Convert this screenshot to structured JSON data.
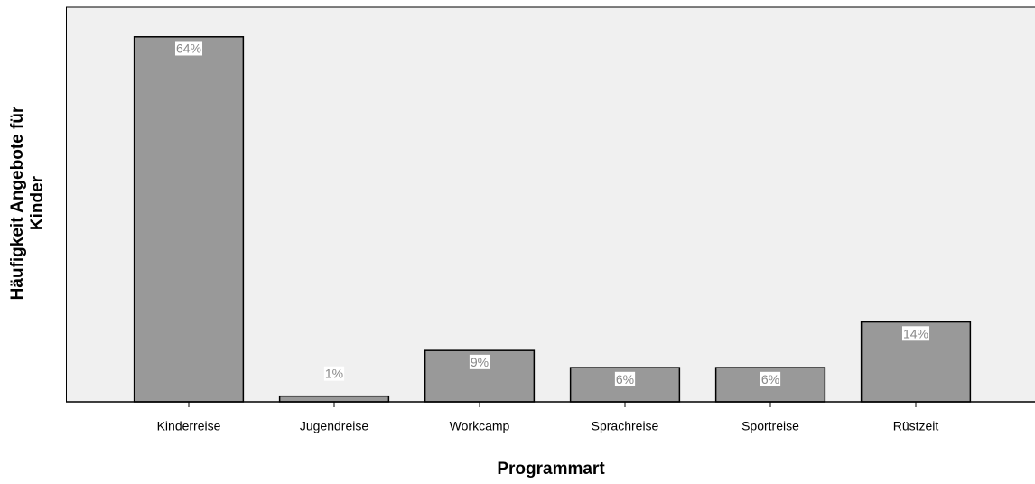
{
  "chart_data": {
    "type": "bar",
    "x_label": "Programmart",
    "y_label": [
      "Häufigkeit Angebote für",
      "Kinder"
    ],
    "categories": [
      "Kinderreise",
      "Jugendreise",
      "Workcamp",
      "Sprachreise",
      "Sportreise",
      "Rüstzeit"
    ],
    "values": [
      64,
      1,
      9,
      6,
      6,
      14
    ],
    "value_labels": [
      "64%",
      "1%",
      "9%",
      "6%",
      "6%",
      "14%"
    ],
    "color": "#999999"
  }
}
